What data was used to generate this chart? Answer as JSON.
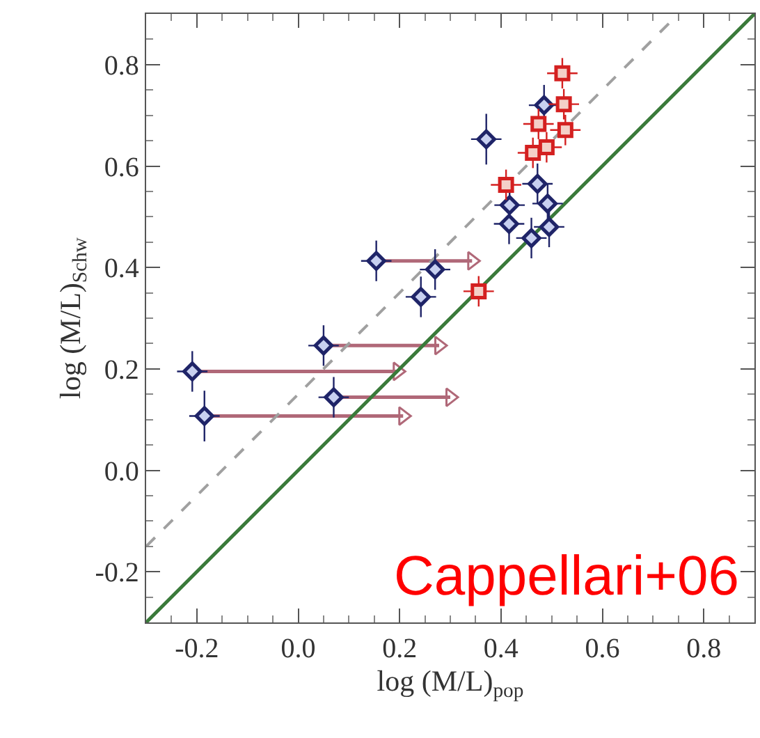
{
  "chart_data": {
    "type": "scatter",
    "xlabel": "log (M/L)$_{pop}$",
    "ylabel": "log (M/L)$_{Schw}$",
    "xlim": [
      -0.3,
      0.9
    ],
    "ylim": [
      -0.3,
      0.9
    ],
    "xticks": [
      -0.2,
      {
        "value": 0.0,
        "label": "0.0"
      },
      0.2,
      0.4,
      0.6,
      0.8
    ],
    "yticks": [
      -0.2,
      {
        "value": 0.0,
        "label": "0.0"
      },
      0.2,
      0.4,
      0.6,
      0.8
    ],
    "annotations": [
      "Cappellari+06"
    ],
    "series": [
      {
        "type": "line",
        "color": "#b06878",
        "marker": "triangle",
        "line_style": "solid",
        "x": [
          0.154,
          0.343,
          null,
          0.05,
          0.278,
          null,
          -0.209,
          0.196,
          null,
          0.07,
          0.3,
          null,
          -0.185,
          0.207
        ],
        "values": [
          0.413,
          0.413,
          null,
          0.246,
          0.246,
          null,
          0.195,
          0.195,
          null,
          0.144,
          0.144,
          null,
          0.107,
          0.107
        ]
      },
      {
        "type": "line",
        "color": "#3a7a3a",
        "marker": "none",
        "line_style": "solid",
        "x": [
          -0.3,
          0.9
        ],
        "values": [
          -0.3,
          0.9
        ]
      },
      {
        "type": "line",
        "color": "#a0a0a0",
        "marker": "none",
        "line_style": "dashed",
        "x": [
          -0.3,
          0.74
        ],
        "values": [
          -0.15,
          0.89
        ]
      },
      {
        "color": "#1f2468",
        "marker": "diamond",
        "x": [
          0.371,
          0.485,
          0.472,
          0.417,
          0.492,
          0.416,
          0.46,
          0.495,
          0.154,
          0.27,
          0.242,
          0.05,
          -0.209,
          0.07,
          -0.185
        ],
        "values": [
          0.653,
          0.72,
          0.565,
          0.523,
          0.526,
          0.486,
          0.458,
          0.48,
          0.413,
          0.396,
          0.342,
          0.246,
          0.195,
          0.144,
          0.107
        ],
        "errors": [
          0.05,
          0.04,
          0.04,
          0.04,
          0.04,
          0.04,
          0.04,
          0.04,
          0.04,
          0.04,
          0.04,
          0.04,
          0.04,
          0.04,
          0.05
        ],
        "xerrors": [
          0.03,
          0.03,
          0.03,
          0.03,
          0.03,
          0.03,
          0.03,
          0.03,
          0.03,
          0.03,
          0.03,
          0.03,
          0.03,
          0.03,
          0.03
        ]
      },
      {
        "color": "#d42020",
        "marker": "square",
        "x": [
          0.521,
          0.524,
          0.527,
          0.474,
          0.49,
          0.463,
          0.41,
          0.356
        ],
        "values": [
          0.783,
          0.722,
          0.671,
          0.683,
          0.637,
          0.626,
          0.563,
          0.353
        ],
        "errors": [
          0.03,
          0.03,
          0.03,
          0.03,
          0.03,
          0.03,
          0.03,
          0.03
        ],
        "xerrors": [
          0.03,
          0.03,
          0.03,
          0.03,
          0.03,
          0.03,
          0.03,
          0.03
        ]
      }
    ]
  }
}
